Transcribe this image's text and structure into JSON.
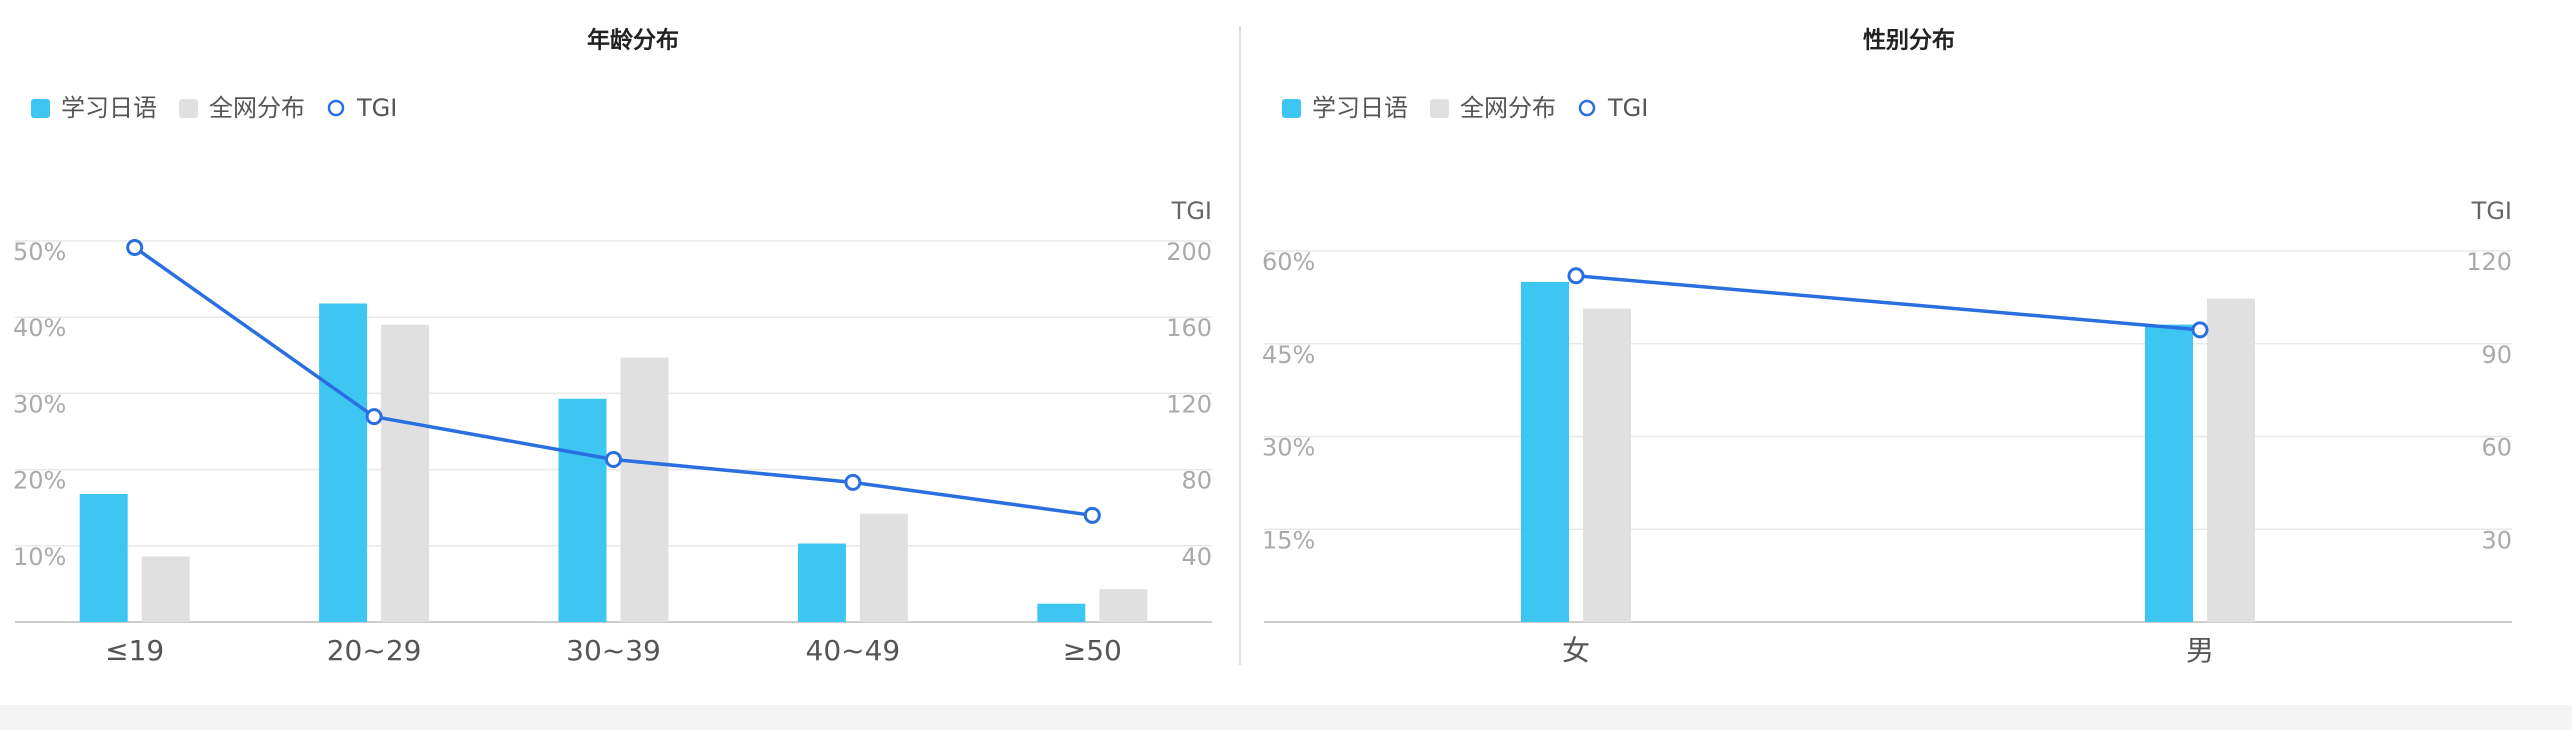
{
  "chart_data": [
    {
      "type": "bar",
      "title": "年龄分布",
      "categories": [
        "≤19",
        "20~29",
        "30~39",
        "40~49",
        "≥50"
      ],
      "series": [
        {
          "name": "学习日语",
          "color": "#3ec6f3",
          "values": [
            16.8,
            41.8,
            29.3,
            10.3,
            2.4
          ]
        },
        {
          "name": "全网分布",
          "color": "#e0e0e0",
          "values": [
            8.6,
            39.0,
            34.7,
            14.2,
            4.3
          ]
        },
        {
          "name": "TGI",
          "type": "line",
          "axis": "y2",
          "color": "#2a6fe0",
          "values": [
            196.6,
            107.8,
            85.3,
            73.3,
            56.0
          ]
        }
      ],
      "y2_label": "TGI",
      "ylim": [
        0,
        50
      ],
      "yticks": [
        {
          "value": 10,
          "label": "10%"
        },
        {
          "value": 20,
          "label": "20%"
        },
        {
          "value": 30,
          "label": "30%"
        },
        {
          "value": 40,
          "label": "40%"
        },
        {
          "value": 50,
          "label": "50%"
        }
      ],
      "y2lim": [
        0,
        200
      ],
      "y2ticks": [
        40,
        80,
        120,
        160,
        200
      ],
      "grid": true,
      "legend": "top-left"
    },
    {
      "type": "bar",
      "title": "性别分布",
      "categories": [
        "女",
        "男"
      ],
      "series": [
        {
          "name": "学习日语",
          "color": "#3ec6f3",
          "values": [
            55.0,
            48.1
          ]
        },
        {
          "name": "全网分布",
          "color": "#e0e0e0",
          "values": [
            50.7,
            52.3
          ]
        },
        {
          "name": "TGI",
          "type": "line",
          "axis": "y2",
          "color": "#2a6fe0",
          "values": [
            112,
            94.5
          ]
        }
      ],
      "y2_label": "TGI",
      "ylim": [
        0,
        60
      ],
      "yticks": [
        {
          "value": 15,
          "label": "15%"
        },
        {
          "value": 30,
          "label": "30%"
        },
        {
          "value": 45,
          "label": "45%"
        },
        {
          "value": 60,
          "label": "60%"
        }
      ],
      "y2lim": [
        0,
        120
      ],
      "y2ticks": [
        30,
        60,
        90,
        120
      ],
      "grid": true,
      "legend": "top-left"
    }
  ]
}
